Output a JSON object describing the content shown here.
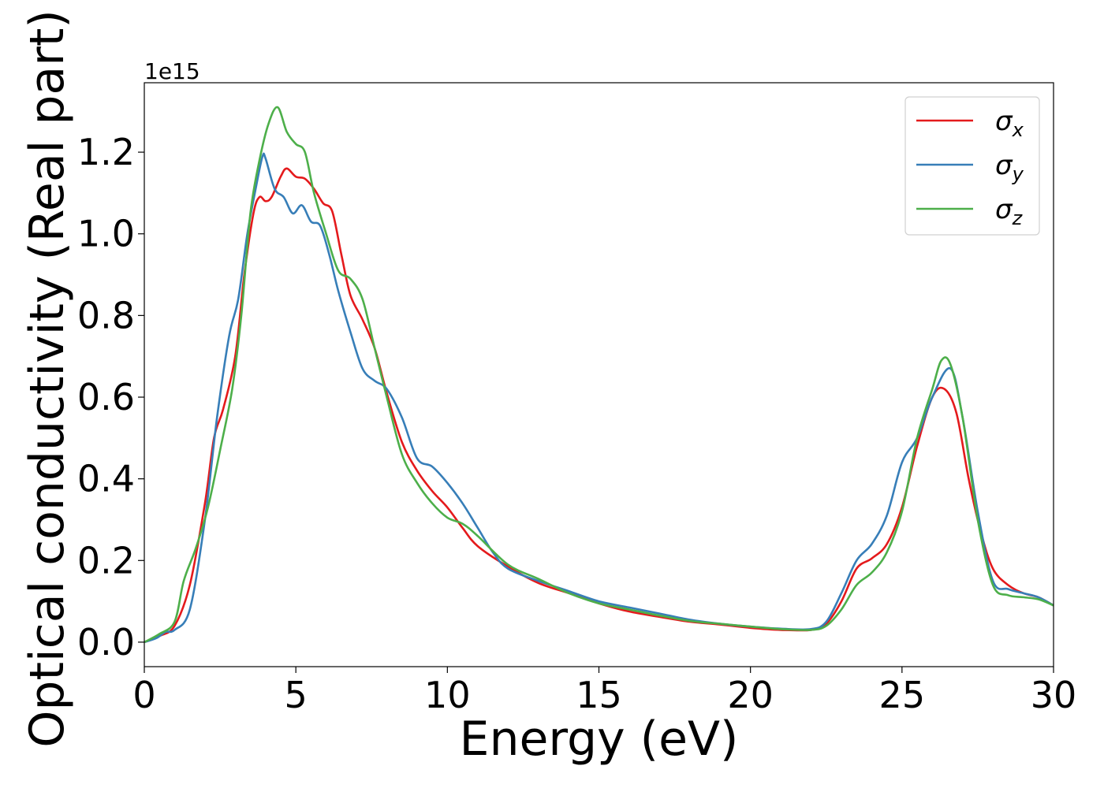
{
  "chart_data": {
    "type": "line",
    "xlabel": "Energy (eV)",
    "ylabel": "Optical conductivity (Real part)",
    "y_offset_label": "1e15",
    "xlim": [
      0,
      30
    ],
    "ylim": [
      -0.06,
      1.37
    ],
    "x_ticks": [
      0,
      5,
      10,
      15,
      20,
      25,
      30
    ],
    "x_tick_labels": [
      "0",
      "5",
      "10",
      "15",
      "20",
      "25",
      "30"
    ],
    "y_ticks": [
      0.0,
      0.2,
      0.4,
      0.6,
      0.8,
      1.0,
      1.2
    ],
    "y_tick_labels": [
      "0.0",
      "0.2",
      "0.4",
      "0.6",
      "0.8",
      "1.0",
      "1.2"
    ],
    "grid": false,
    "legend_position": "top-right",
    "series": [
      {
        "name": "σx",
        "legend_symbol": "σ",
        "legend_subscript": "x",
        "color": "#e41a1c",
        "points": [
          [
            0,
            0
          ],
          [
            0.5,
            0.015
          ],
          [
            1.0,
            0.04
          ],
          [
            1.5,
            0.14
          ],
          [
            2.0,
            0.34
          ],
          [
            2.3,
            0.5
          ],
          [
            2.6,
            0.57
          ],
          [
            3.0,
            0.7
          ],
          [
            3.3,
            0.9
          ],
          [
            3.6,
            1.05
          ],
          [
            3.8,
            1.09
          ],
          [
            4.0,
            1.08
          ],
          [
            4.2,
            1.09
          ],
          [
            4.5,
            1.14
          ],
          [
            4.7,
            1.16
          ],
          [
            5.0,
            1.14
          ],
          [
            5.3,
            1.135
          ],
          [
            5.6,
            1.11
          ],
          [
            5.9,
            1.075
          ],
          [
            6.2,
            1.055
          ],
          [
            6.5,
            0.95
          ],
          [
            6.8,
            0.85
          ],
          [
            7.2,
            0.79
          ],
          [
            7.6,
            0.72
          ],
          [
            8.0,
            0.61
          ],
          [
            8.5,
            0.49
          ],
          [
            9.0,
            0.42
          ],
          [
            9.5,
            0.37
          ],
          [
            10.0,
            0.33
          ],
          [
            10.5,
            0.28
          ],
          [
            11.0,
            0.235
          ],
          [
            12.0,
            0.185
          ],
          [
            13.0,
            0.145
          ],
          [
            14.0,
            0.12
          ],
          [
            15.0,
            0.095
          ],
          [
            16.0,
            0.075
          ],
          [
            17.0,
            0.062
          ],
          [
            18.0,
            0.05
          ],
          [
            19.0,
            0.043
          ],
          [
            20.0,
            0.035
          ],
          [
            21.0,
            0.03
          ],
          [
            22.0,
            0.03
          ],
          [
            22.5,
            0.045
          ],
          [
            23.0,
            0.1
          ],
          [
            23.5,
            0.18
          ],
          [
            24.0,
            0.205
          ],
          [
            24.5,
            0.24
          ],
          [
            25.0,
            0.33
          ],
          [
            25.5,
            0.48
          ],
          [
            26.0,
            0.6
          ],
          [
            26.4,
            0.62
          ],
          [
            26.8,
            0.56
          ],
          [
            27.2,
            0.4
          ],
          [
            27.6,
            0.27
          ],
          [
            28.0,
            0.18
          ],
          [
            28.5,
            0.14
          ],
          [
            29.0,
            0.12
          ],
          [
            29.5,
            0.11
          ],
          [
            30.0,
            0.09
          ]
        ]
      },
      {
        "name": "σy",
        "legend_symbol": "σ",
        "legend_subscript": "y",
        "color": "#377eb8",
        "points": [
          [
            0,
            0
          ],
          [
            0.4,
            0.01
          ],
          [
            0.7,
            0.025
          ],
          [
            1.0,
            0.03
          ],
          [
            1.5,
            0.08
          ],
          [
            2.0,
            0.3
          ],
          [
            2.4,
            0.55
          ],
          [
            2.8,
            0.75
          ],
          [
            3.1,
            0.84
          ],
          [
            3.4,
            1.0
          ],
          [
            3.7,
            1.12
          ],
          [
            3.9,
            1.19
          ],
          [
            4.0,
            1.185
          ],
          [
            4.3,
            1.11
          ],
          [
            4.6,
            1.09
          ],
          [
            4.9,
            1.05
          ],
          [
            5.2,
            1.07
          ],
          [
            5.5,
            1.03
          ],
          [
            5.8,
            1.02
          ],
          [
            6.1,
            0.95
          ],
          [
            6.4,
            0.86
          ],
          [
            6.8,
            0.76
          ],
          [
            7.2,
            0.67
          ],
          [
            7.6,
            0.64
          ],
          [
            8.0,
            0.62
          ],
          [
            8.5,
            0.55
          ],
          [
            9.0,
            0.45
          ],
          [
            9.5,
            0.43
          ],
          [
            10.0,
            0.39
          ],
          [
            10.5,
            0.34
          ],
          [
            11.0,
            0.28
          ],
          [
            11.5,
            0.22
          ],
          [
            12.0,
            0.18
          ],
          [
            13.0,
            0.15
          ],
          [
            14.0,
            0.125
          ],
          [
            15.0,
            0.1
          ],
          [
            16.0,
            0.085
          ],
          [
            17.0,
            0.07
          ],
          [
            18.0,
            0.055
          ],
          [
            19.0,
            0.045
          ],
          [
            20.0,
            0.038
          ],
          [
            21.0,
            0.033
          ],
          [
            22.0,
            0.032
          ],
          [
            22.5,
            0.05
          ],
          [
            23.0,
            0.12
          ],
          [
            23.5,
            0.2
          ],
          [
            24.0,
            0.24
          ],
          [
            24.5,
            0.31
          ],
          [
            25.0,
            0.44
          ],
          [
            25.5,
            0.5
          ],
          [
            26.0,
            0.6
          ],
          [
            26.6,
            0.67
          ],
          [
            27.0,
            0.55
          ],
          [
            27.5,
            0.32
          ],
          [
            28.0,
            0.15
          ],
          [
            28.5,
            0.13
          ],
          [
            29.0,
            0.12
          ],
          [
            29.5,
            0.11
          ],
          [
            30.0,
            0.09
          ]
        ]
      },
      {
        "name": "σz",
        "legend_symbol": "σ",
        "legend_subscript": "z",
        "color": "#4daf4a",
        "points": [
          [
            0,
            0
          ],
          [
            0.5,
            0.02
          ],
          [
            1.0,
            0.05
          ],
          [
            1.3,
            0.15
          ],
          [
            1.7,
            0.23
          ],
          [
            2.1,
            0.33
          ],
          [
            2.5,
            0.47
          ],
          [
            2.9,
            0.62
          ],
          [
            3.2,
            0.8
          ],
          [
            3.5,
            1.05
          ],
          [
            3.8,
            1.18
          ],
          [
            4.1,
            1.27
          ],
          [
            4.4,
            1.31
          ],
          [
            4.7,
            1.25
          ],
          [
            5.0,
            1.22
          ],
          [
            5.3,
            1.2
          ],
          [
            5.6,
            1.1
          ],
          [
            6.0,
            1.0
          ],
          [
            6.4,
            0.91
          ],
          [
            6.8,
            0.89
          ],
          [
            7.2,
            0.84
          ],
          [
            7.6,
            0.72
          ],
          [
            8.0,
            0.6
          ],
          [
            8.5,
            0.46
          ],
          [
            9.0,
            0.39
          ],
          [
            9.5,
            0.34
          ],
          [
            10.0,
            0.305
          ],
          [
            10.5,
            0.29
          ],
          [
            11.0,
            0.26
          ],
          [
            12.0,
            0.19
          ],
          [
            13.0,
            0.155
          ],
          [
            14.0,
            0.12
          ],
          [
            15.0,
            0.095
          ],
          [
            16.0,
            0.08
          ],
          [
            17.0,
            0.065
          ],
          [
            18.0,
            0.052
          ],
          [
            19.0,
            0.045
          ],
          [
            20.0,
            0.038
          ],
          [
            21.0,
            0.032
          ],
          [
            22.0,
            0.03
          ],
          [
            22.5,
            0.04
          ],
          [
            23.0,
            0.08
          ],
          [
            23.5,
            0.14
          ],
          [
            24.0,
            0.17
          ],
          [
            24.5,
            0.22
          ],
          [
            25.0,
            0.32
          ],
          [
            25.5,
            0.5
          ],
          [
            26.0,
            0.62
          ],
          [
            26.3,
            0.69
          ],
          [
            26.6,
            0.68
          ],
          [
            27.0,
            0.55
          ],
          [
            27.5,
            0.3
          ],
          [
            28.0,
            0.14
          ],
          [
            28.5,
            0.115
          ],
          [
            29.0,
            0.11
          ],
          [
            29.5,
            0.105
          ],
          [
            30.0,
            0.09
          ]
        ]
      }
    ]
  }
}
